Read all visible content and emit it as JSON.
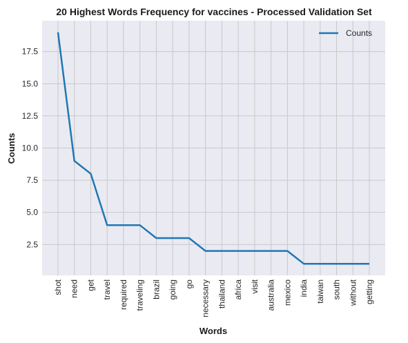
{
  "chart_data": {
    "type": "line",
    "title": "20 Highest Words Frequency for vaccines - Processed Validation Set",
    "xlabel": "Words",
    "ylabel": "Counts",
    "categories": [
      "shot",
      "need",
      "get",
      "travel",
      "required",
      "traveling",
      "brazil",
      "going",
      "go",
      "necessary",
      "thailand",
      "africa",
      "visit",
      "australia",
      "mexico",
      "india",
      "taiwan",
      "south",
      "without",
      "getting"
    ],
    "series": [
      {
        "name": "Counts",
        "values": [
          19,
          9,
          8,
          4,
          4,
          4,
          3,
          3,
          3,
          2,
          2,
          2,
          2,
          2,
          2,
          1,
          1,
          1,
          1,
          1
        ],
        "color": "#1f77b4"
      }
    ],
    "ylim": [
      0.1,
      19.9
    ],
    "yticks": [
      2.5,
      5.0,
      7.5,
      10.0,
      12.5,
      15.0,
      17.5
    ],
    "ytick_labels": [
      "2.5",
      "5.0",
      "7.5",
      "10.0",
      "12.5",
      "15.0",
      "17.5"
    ],
    "grid": true,
    "legend_position": "top-right",
    "colors": {
      "plot_background": "#eaeaf2",
      "grid": "#c8c8c8",
      "line": "#1f77b4"
    }
  }
}
